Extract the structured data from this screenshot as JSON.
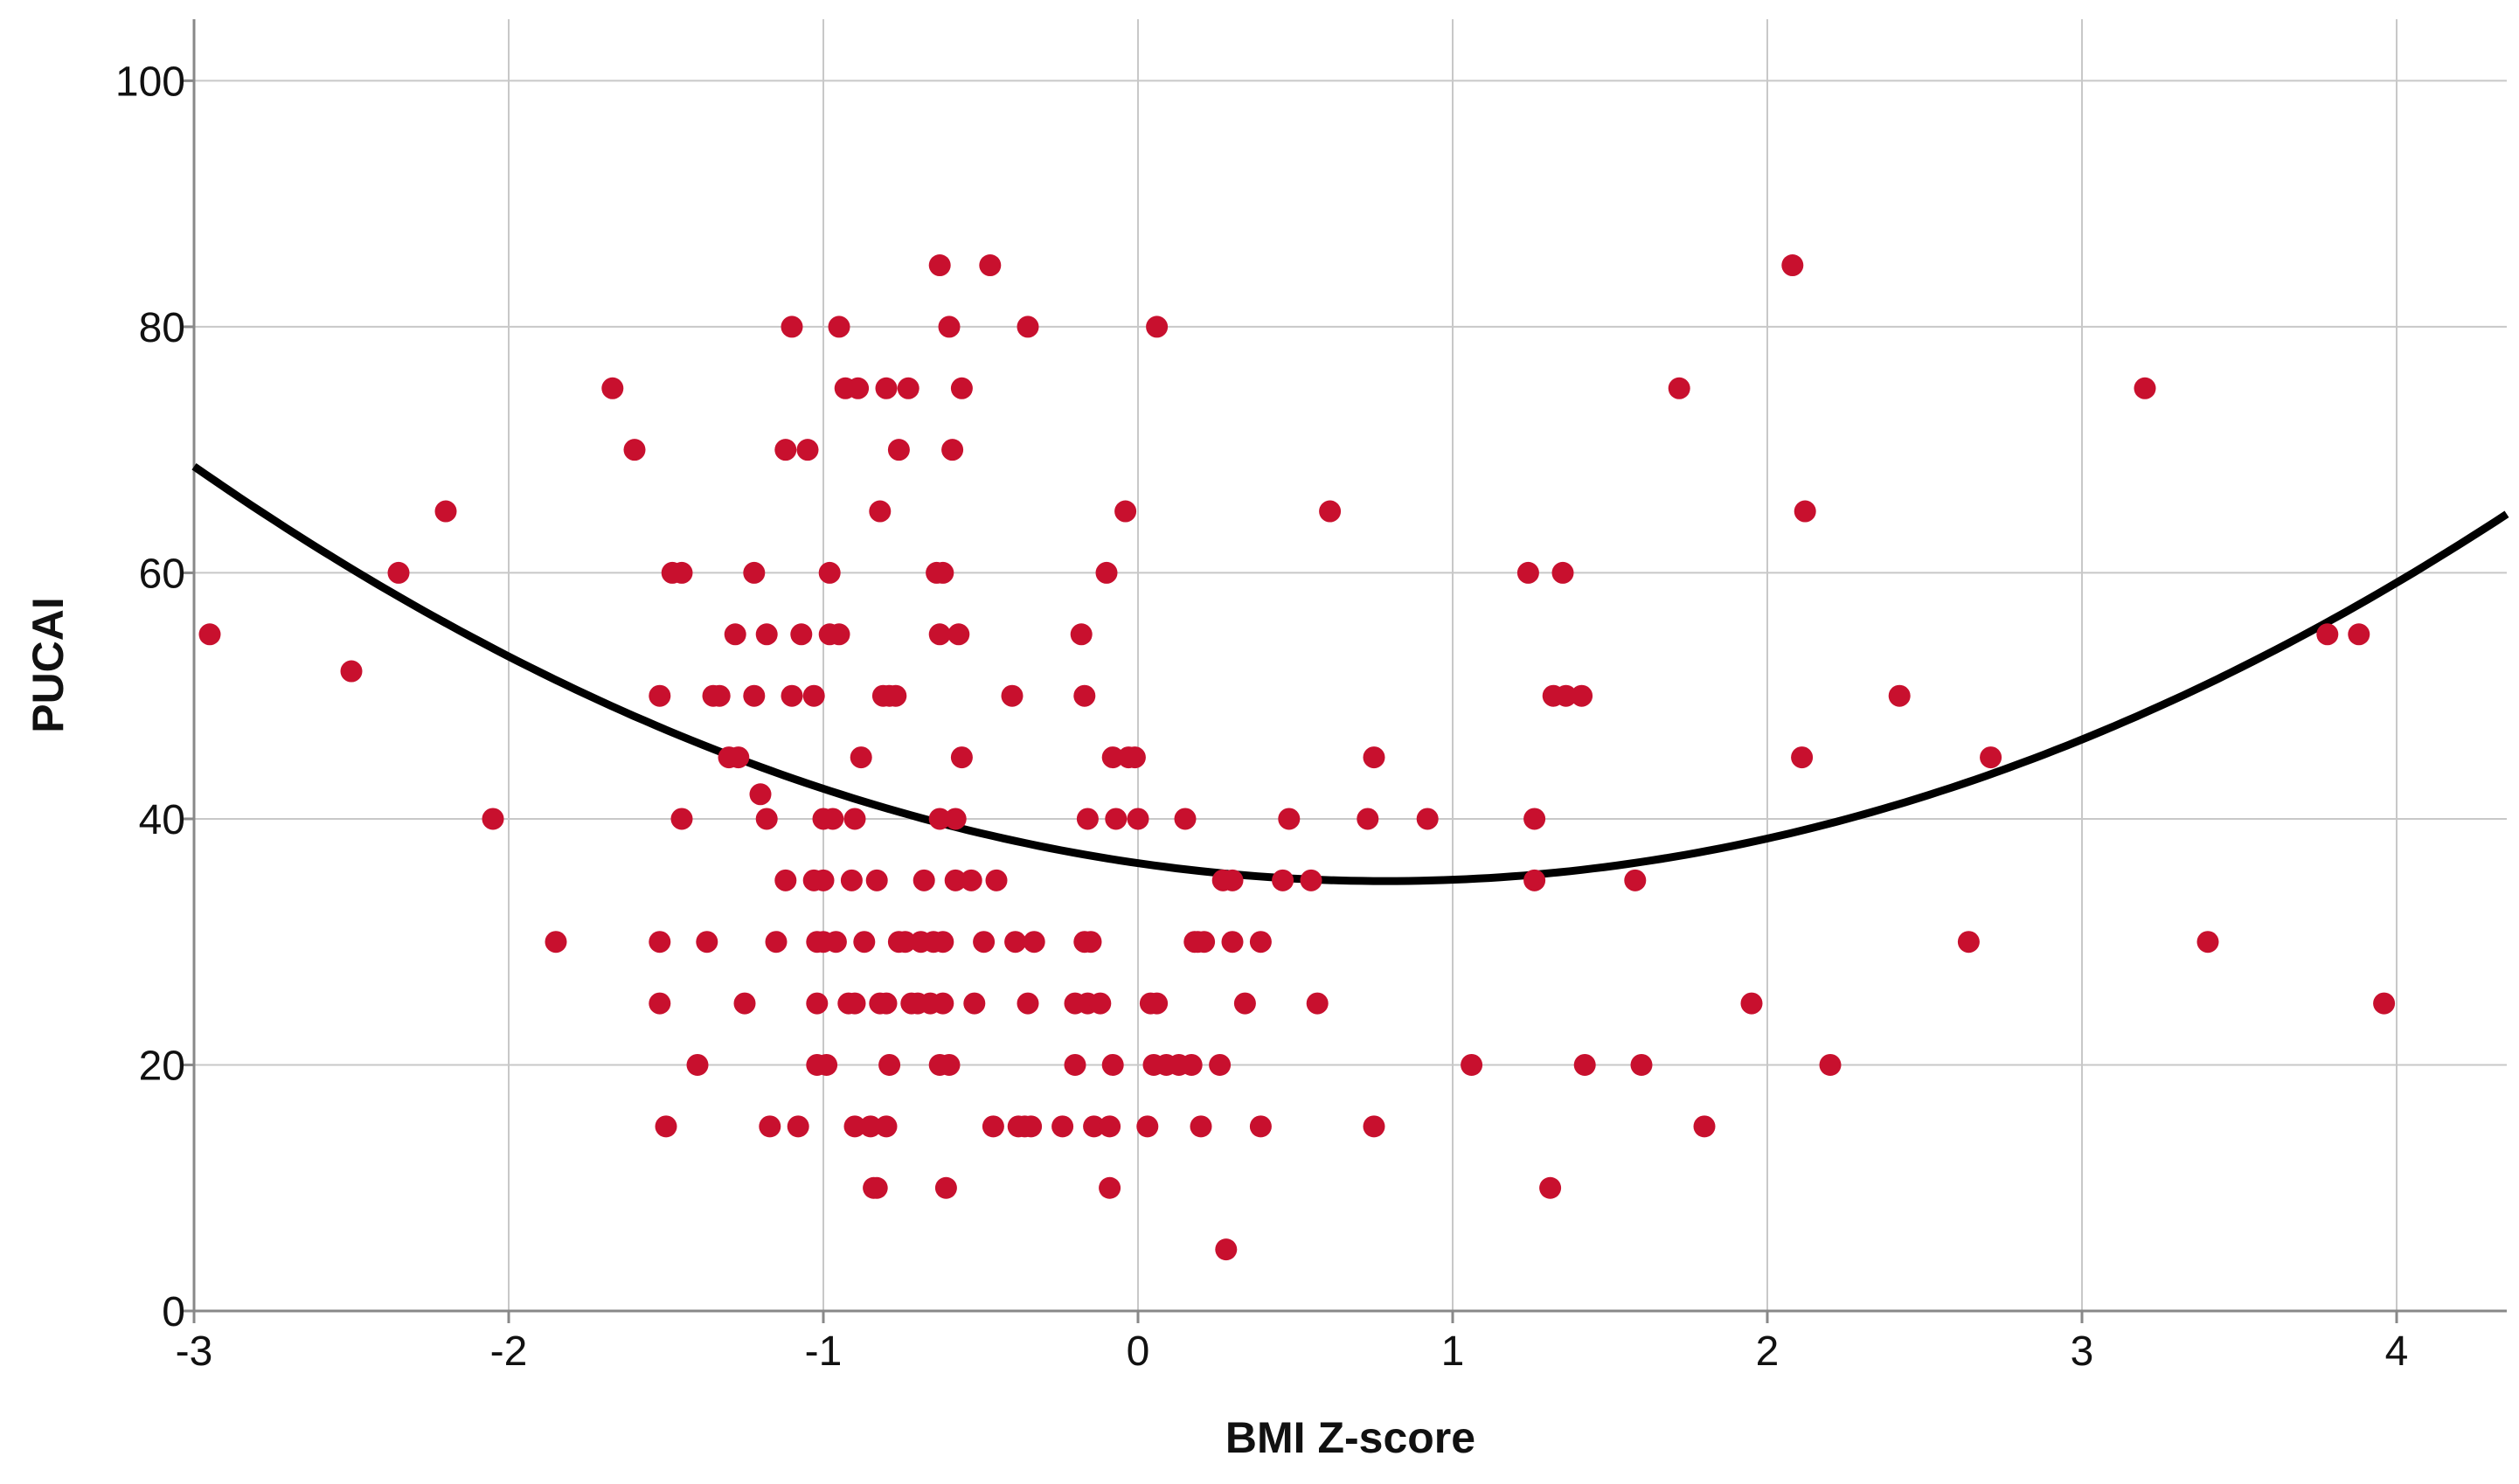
{
  "chart_data": {
    "type": "scatter",
    "title": "",
    "xlabel": "BMI Z-score",
    "ylabel": "PUCAI",
    "xlim": [
      -3,
      4.35
    ],
    "ylim": [
      0,
      105
    ],
    "xticks": [
      -3,
      -2,
      -1,
      0,
      1,
      2,
      3,
      4
    ],
    "yticks": [
      0,
      20,
      40,
      60,
      80,
      100
    ],
    "xtick_labels": [
      "-3",
      "-2",
      "-1",
      "0",
      "1",
      "2",
      "3",
      "4"
    ],
    "ytick_labels": [
      "0",
      "20",
      "40",
      "60",
      "80",
      "100"
    ],
    "grid": true,
    "legend": "none",
    "colors": {
      "points": "#c8102e",
      "fit_line": "#000000",
      "grid": "#c8c8c8",
      "axis": "#888888"
    },
    "fit": {
      "type": "quadratic",
      "coefficients": [
        36.4,
        -3.7,
        2.35
      ],
      "x_range": [
        -3,
        4.35
      ]
    },
    "points": [
      [
        -2.95,
        55
      ],
      [
        -2.5,
        52
      ],
      [
        -2.35,
        60
      ],
      [
        -2.2,
        65
      ],
      [
        -2.05,
        40
      ],
      [
        -1.85,
        30
      ],
      [
        -1.67,
        75
      ],
      [
        -1.6,
        70
      ],
      [
        -1.52,
        50
      ],
      [
        -1.52,
        30
      ],
      [
        -1.52,
        25
      ],
      [
        -1.5,
        15
      ],
      [
        -1.48,
        60
      ],
      [
        -1.45,
        60
      ],
      [
        -1.45,
        40
      ],
      [
        -1.4,
        20
      ],
      [
        -1.37,
        30
      ],
      [
        -1.35,
        50
      ],
      [
        -1.33,
        50
      ],
      [
        -1.3,
        45
      ],
      [
        -1.28,
        55
      ],
      [
        -1.27,
        45
      ],
      [
        -1.25,
        25
      ],
      [
        -1.22,
        60
      ],
      [
        -1.22,
        50
      ],
      [
        -1.2,
        42
      ],
      [
        -1.18,
        55
      ],
      [
        -1.18,
        40
      ],
      [
        -1.17,
        15
      ],
      [
        -1.15,
        30
      ],
      [
        -1.12,
        70
      ],
      [
        -1.12,
        35
      ],
      [
        -1.1,
        80
      ],
      [
        -1.1,
        50
      ],
      [
        -1.08,
        15
      ],
      [
        -1.07,
        55
      ],
      [
        -1.05,
        70
      ],
      [
        -1.03,
        50
      ],
      [
        -1.03,
        35
      ],
      [
        -1.02,
        30
      ],
      [
        -1.02,
        25
      ],
      [
        -1.02,
        20
      ],
      [
        -1.0,
        40
      ],
      [
        -1.0,
        30
      ],
      [
        -1.0,
        35
      ],
      [
        -0.99,
        20
      ],
      [
        -0.98,
        60
      ],
      [
        -0.98,
        55
      ],
      [
        -0.97,
        40
      ],
      [
        -0.96,
        30
      ],
      [
        -0.95,
        80
      ],
      [
        -0.95,
        55
      ],
      [
        -0.93,
        75
      ],
      [
        -0.92,
        25
      ],
      [
        -0.91,
        35
      ],
      [
        -0.9,
        25
      ],
      [
        -0.9,
        40
      ],
      [
        -0.9,
        15
      ],
      [
        -0.89,
        75
      ],
      [
        -0.88,
        45
      ],
      [
        -0.87,
        30
      ],
      [
        -0.85,
        15
      ],
      [
        -0.84,
        10
      ],
      [
        -0.83,
        35
      ],
      [
        -0.83,
        10
      ],
      [
        -0.82,
        65
      ],
      [
        -0.82,
        25
      ],
      [
        -0.81,
        50
      ],
      [
        -0.8,
        75
      ],
      [
        -0.8,
        15
      ],
      [
        -0.8,
        25
      ],
      [
        -0.79,
        20
      ],
      [
        -0.79,
        50
      ],
      [
        -0.77,
        50
      ],
      [
        -0.76,
        30
      ],
      [
        -0.76,
        70
      ],
      [
        -0.74,
        30
      ],
      [
        -0.73,
        75
      ],
      [
        -0.72,
        25
      ],
      [
        -0.7,
        25
      ],
      [
        -0.69,
        30
      ],
      [
        -0.68,
        35
      ],
      [
        -0.66,
        25
      ],
      [
        -0.65,
        30
      ],
      [
        -0.64,
        60
      ],
      [
        -0.63,
        85
      ],
      [
        -0.63,
        55
      ],
      [
        -0.63,
        40
      ],
      [
        -0.63,
        20
      ],
      [
        -0.62,
        60
      ],
      [
        -0.62,
        25
      ],
      [
        -0.62,
        30
      ],
      [
        -0.61,
        10
      ],
      [
        -0.6,
        20
      ],
      [
        -0.6,
        80
      ],
      [
        -0.59,
        70
      ],
      [
        -0.58,
        40
      ],
      [
        -0.58,
        35
      ],
      [
        -0.57,
        55
      ],
      [
        -0.56,
        75
      ],
      [
        -0.56,
        45
      ],
      [
        -0.53,
        35
      ],
      [
        -0.52,
        25
      ],
      [
        -0.49,
        30
      ],
      [
        -0.47,
        85
      ],
      [
        -0.46,
        15
      ],
      [
        -0.45,
        35
      ],
      [
        -0.4,
        50
      ],
      [
        -0.39,
        30
      ],
      [
        -0.38,
        15
      ],
      [
        -0.36,
        15
      ],
      [
        -0.35,
        80
      ],
      [
        -0.35,
        25
      ],
      [
        -0.34,
        15
      ],
      [
        -0.33,
        30
      ],
      [
        -0.24,
        15
      ],
      [
        -0.2,
        20
      ],
      [
        -0.2,
        25
      ],
      [
        -0.18,
        55
      ],
      [
        -0.17,
        30
      ],
      [
        -0.17,
        50
      ],
      [
        -0.16,
        40
      ],
      [
        -0.16,
        25
      ],
      [
        -0.15,
        30
      ],
      [
        -0.14,
        15
      ],
      [
        -0.12,
        25
      ],
      [
        -0.1,
        60
      ],
      [
        -0.09,
        10
      ],
      [
        -0.09,
        15
      ],
      [
        -0.08,
        20
      ],
      [
        -0.08,
        45
      ],
      [
        -0.07,
        40
      ],
      [
        -0.04,
        65
      ],
      [
        -0.03,
        45
      ],
      [
        -0.01,
        45
      ],
      [
        0.0,
        40
      ],
      [
        0.03,
        15
      ],
      [
        0.04,
        25
      ],
      [
        0.05,
        20
      ],
      [
        0.06,
        80
      ],
      [
        0.06,
        25
      ],
      [
        0.09,
        20
      ],
      [
        0.13,
        20
      ],
      [
        0.15,
        40
      ],
      [
        0.17,
        20
      ],
      [
        0.18,
        30
      ],
      [
        0.19,
        30
      ],
      [
        0.2,
        15
      ],
      [
        0.21,
        30
      ],
      [
        0.26,
        20
      ],
      [
        0.27,
        35
      ],
      [
        0.28,
        5
      ],
      [
        0.3,
        35
      ],
      [
        0.3,
        30
      ],
      [
        0.34,
        25
      ],
      [
        0.39,
        30
      ],
      [
        0.39,
        15
      ],
      [
        0.46,
        35
      ],
      [
        0.48,
        40
      ],
      [
        0.55,
        35
      ],
      [
        0.57,
        25
      ],
      [
        0.61,
        65
      ],
      [
        0.73,
        40
      ],
      [
        0.75,
        45
      ],
      [
        0.75,
        15
      ],
      [
        0.92,
        40
      ],
      [
        1.06,
        20
      ],
      [
        1.24,
        60
      ],
      [
        1.26,
        40
      ],
      [
        1.26,
        35
      ],
      [
        1.31,
        10
      ],
      [
        1.32,
        50
      ],
      [
        1.35,
        60
      ],
      [
        1.36,
        50
      ],
      [
        1.41,
        50
      ],
      [
        1.42,
        20
      ],
      [
        1.58,
        35
      ],
      [
        1.6,
        20
      ],
      [
        1.72,
        75
      ],
      [
        1.8,
        15
      ],
      [
        1.95,
        25
      ],
      [
        2.08,
        85
      ],
      [
        2.11,
        45
      ],
      [
        2.12,
        65
      ],
      [
        2.2,
        20
      ],
      [
        2.42,
        50
      ],
      [
        2.64,
        30
      ],
      [
        2.71,
        45
      ],
      [
        3.2,
        75
      ],
      [
        3.4,
        30
      ],
      [
        3.78,
        55
      ],
      [
        3.88,
        55
      ],
      [
        3.96,
        25
      ]
    ]
  }
}
